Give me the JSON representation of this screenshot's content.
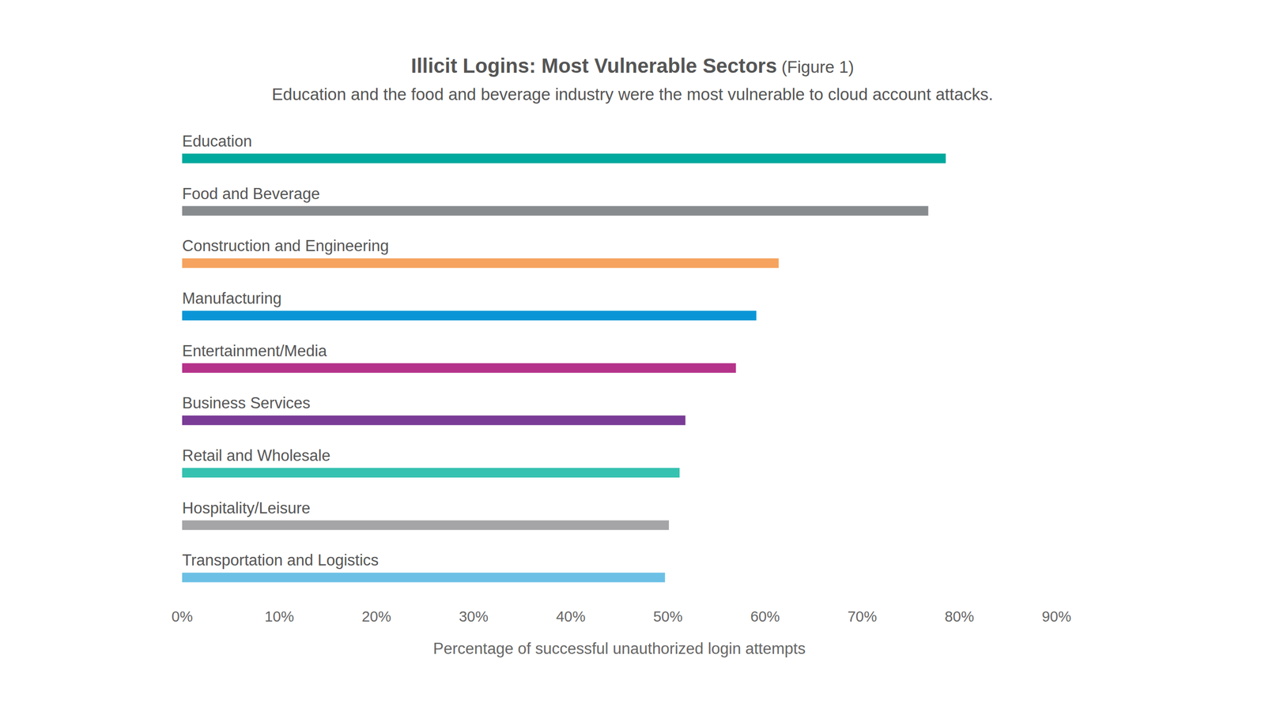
{
  "chart_data": {
    "type": "bar",
    "title": "Illicit Logins: Most Vulnerable Sectors",
    "title_suffix": "(Figure 1)",
    "subtitle": "Education and the food and beverage industry were the most vulnerable to cloud account attacks.",
    "x_label": "Percentage of successful unauthorized login attempts",
    "orientation": "horizontal",
    "grid": false,
    "categories": [
      "Education",
      "Food and Beverage",
      "Construction and Engineering",
      "Manufacturing",
      "Entertainment/Media",
      "Business Services",
      "Retail and Wholesale",
      "Hospitality/Leisure",
      "Transportation and Logistics"
    ],
    "values": [
      78.6,
      76.8,
      61.4,
      59.1,
      57.0,
      51.8,
      51.2,
      50.1,
      49.7
    ],
    "colors": [
      "#00a99d",
      "#888b8e",
      "#f5a35e",
      "#0a96d6",
      "#b5338a",
      "#7a3b96",
      "#36c2b0",
      "#a5a5a8",
      "#6cc0e5"
    ],
    "xlim": [
      0,
      90
    ],
    "xticks": [
      {
        "value": 0,
        "label": "0%"
      },
      {
        "value": 10,
        "label": "10%"
      },
      {
        "value": 20,
        "label": "20%"
      },
      {
        "value": 30,
        "label": "30%"
      },
      {
        "value": 40,
        "label": "40%"
      },
      {
        "value": 50,
        "label": "50%"
      },
      {
        "value": 60,
        "label": "60%"
      },
      {
        "value": 70,
        "label": "70%"
      },
      {
        "value": 80,
        "label": "80%"
      },
      {
        "value": 90,
        "label": "90%"
      }
    ]
  }
}
